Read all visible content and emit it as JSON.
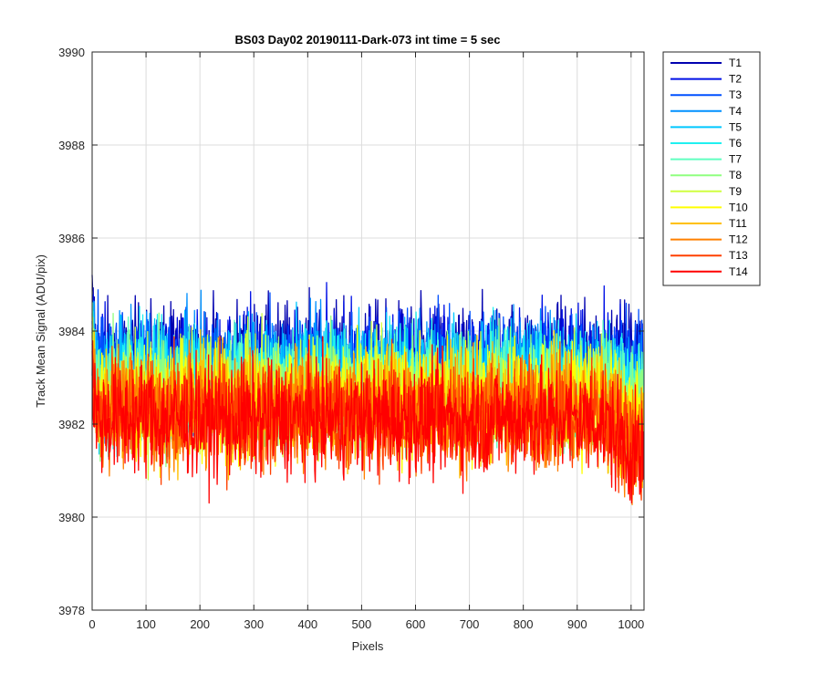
{
  "chart_data": {
    "type": "line",
    "title": "BS03 Day02 20190111-Dark-073 int time = 5 sec",
    "xlabel": "Pixels",
    "ylabel": "Track Mean Signal (ADU/pix)",
    "xlim": [
      0,
      1024
    ],
    "ylim": [
      3978,
      3990
    ],
    "xticks": [
      0,
      100,
      200,
      300,
      400,
      500,
      600,
      700,
      800,
      900,
      1000
    ],
    "yticks": [
      3978,
      3980,
      3982,
      3984,
      3986,
      3988,
      3990
    ],
    "grid": true,
    "legend_position": "outside-top-right",
    "n_pixels": 1024,
    "series": [
      {
        "name": "T1",
        "color": "#0000b0",
        "center": 3983.4,
        "spread": 1.1
      },
      {
        "name": "T2",
        "color": "#0010e6",
        "center": 3983.3,
        "spread": 1.1
      },
      {
        "name": "T3",
        "color": "#0050ff",
        "center": 3983.2,
        "spread": 1.1
      },
      {
        "name": "T4",
        "color": "#0090ff",
        "center": 3983.1,
        "spread": 1.1
      },
      {
        "name": "T5",
        "color": "#00c8ff",
        "center": 3983.0,
        "spread": 1.1
      },
      {
        "name": "T6",
        "color": "#20f0f0",
        "center": 3982.9,
        "spread": 1.1
      },
      {
        "name": "T7",
        "color": "#60ffc0",
        "center": 3982.8,
        "spread": 1.1
      },
      {
        "name": "T8",
        "color": "#90ff80",
        "center": 3982.7,
        "spread": 1.1
      },
      {
        "name": "T9",
        "color": "#d0ff40",
        "center": 3982.6,
        "spread": 1.1
      },
      {
        "name": "T10",
        "color": "#ffff00",
        "center": 3982.5,
        "spread": 1.1
      },
      {
        "name": "T11",
        "color": "#ffc000",
        "center": 3982.4,
        "spread": 1.1
      },
      {
        "name": "T12",
        "color": "#ff8000",
        "center": 3982.3,
        "spread": 1.1
      },
      {
        "name": "T13",
        "color": "#ff4000",
        "center": 3982.2,
        "spread": 1.1
      },
      {
        "name": "T14",
        "color": "#ff0000",
        "center": 3982.1,
        "spread": 1.1
      }
    ]
  }
}
